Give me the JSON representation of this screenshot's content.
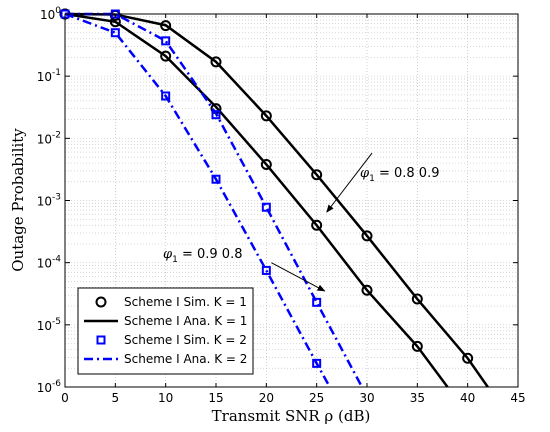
{
  "chart_data": {
    "type": "line",
    "xlabel": "Transmit SNR ρ (dB)",
    "ylabel": "Outage Probability",
    "xlim": [
      0,
      45
    ],
    "ylim": [
      1e-06,
      1
    ],
    "yscale": "log",
    "grid": true,
    "x_ticks": [
      "0",
      "5",
      "10",
      "15",
      "20",
      "25",
      "30",
      "35",
      "40",
      "45"
    ],
    "y_ticks": [
      {
        "base": "10",
        "exp": "0"
      },
      {
        "base": "10",
        "exp": "-1"
      },
      {
        "base": "10",
        "exp": "-2"
      },
      {
        "base": "10",
        "exp": "-3"
      },
      {
        "base": "10",
        "exp": "-4"
      },
      {
        "base": "10",
        "exp": "-5"
      },
      {
        "base": "10",
        "exp": "-6"
      }
    ],
    "legend": {
      "position": "bottom-left",
      "entries": [
        {
          "label": "Scheme I Sim. K = 1",
          "color": "#000000",
          "style": "marker-circle"
        },
        {
          "label": "Scheme I Ana. K = 1",
          "color": "#000000",
          "style": "solid"
        },
        {
          "label": "Scheme I Sim. K = 2",
          "color": "#0000ff",
          "style": "marker-square"
        },
        {
          "label": "Scheme I Ana. K = 2",
          "color": "#0000ff",
          "style": "dashdot"
        }
      ]
    },
    "series": [
      {
        "group": "K1",
        "kind": "sim",
        "color": "#000000",
        "marker": "circle",
        "points": [
          [
            0,
            1.0
          ],
          [
            5,
            0.95
          ],
          [
            10,
            0.65
          ],
          [
            15,
            0.17
          ],
          [
            20,
            0.023
          ],
          [
            25,
            0.0026
          ],
          [
            30,
            0.00027
          ],
          [
            35,
            2.6e-05
          ],
          [
            40,
            2.9e-06
          ]
        ]
      },
      {
        "group": "K1",
        "kind": "sim",
        "color": "#000000",
        "marker": "circle",
        "points": [
          [
            0,
            1.0
          ],
          [
            5,
            0.75
          ],
          [
            10,
            0.21
          ],
          [
            15,
            0.03
          ],
          [
            20,
            0.0038
          ],
          [
            25,
            0.0004
          ],
          [
            30,
            3.6e-05
          ],
          [
            35,
            4.5e-06
          ]
        ]
      },
      {
        "group": "K1",
        "kind": "ana",
        "color": "#000000",
        "dash": "solid",
        "points": [
          [
            0,
            1.0
          ],
          [
            5,
            0.98
          ],
          [
            10,
            0.66
          ],
          [
            15,
            0.17
          ],
          [
            20,
            0.023
          ],
          [
            25,
            0.0026
          ],
          [
            30,
            0.00027
          ],
          [
            35,
            2.6e-05
          ],
          [
            40,
            2.9e-06
          ],
          [
            42,
            1e-06
          ]
        ]
      },
      {
        "group": "K1",
        "kind": "ana",
        "color": "#000000",
        "dash": "solid",
        "points": [
          [
            0,
            1.0
          ],
          [
            5,
            0.75
          ],
          [
            10,
            0.21
          ],
          [
            15,
            0.032
          ],
          [
            20,
            0.0038
          ],
          [
            25,
            0.0004
          ],
          [
            30,
            3.6e-05
          ],
          [
            35,
            4.5e-06
          ],
          [
            38,
            1e-06
          ]
        ]
      },
      {
        "group": "K2",
        "kind": "sim",
        "color": "#0000ff",
        "marker": "square",
        "points": [
          [
            0,
            1.0
          ],
          [
            5,
            1.0
          ],
          [
            10,
            0.37
          ],
          [
            15,
            0.024
          ],
          [
            20,
            0.00078
          ],
          [
            25,
            2.3e-05
          ]
        ]
      },
      {
        "group": "K2",
        "kind": "sim",
        "color": "#0000ff",
        "marker": "square",
        "points": [
          [
            0,
            1.0
          ],
          [
            5,
            0.5
          ],
          [
            10,
            0.048
          ],
          [
            15,
            0.0022
          ],
          [
            20,
            7.5e-05
          ],
          [
            25,
            2.4e-06
          ]
        ]
      },
      {
        "group": "K2",
        "kind": "ana",
        "color": "#0000ff",
        "dash": "dashdot",
        "points": [
          [
            0,
            1.0
          ],
          [
            5,
            1.0
          ],
          [
            10,
            0.37
          ],
          [
            15,
            0.025
          ],
          [
            20,
            0.00078
          ],
          [
            25,
            2.3e-05
          ],
          [
            29.5,
            1e-06
          ]
        ]
      },
      {
        "group": "K2",
        "kind": "ana",
        "color": "#0000ff",
        "dash": "dashdot",
        "points": [
          [
            0,
            1.0
          ],
          [
            5,
            0.5
          ],
          [
            10,
            0.048
          ],
          [
            15,
            0.0022
          ],
          [
            20,
            7.5e-05
          ],
          [
            25,
            2.4e-06
          ],
          [
            26.3,
            1e-06
          ]
        ]
      }
    ],
    "annotations": [
      {
        "text": "0.8 0.9",
        "symbol": "φ",
        "subscript": "1",
        "arrow_from": [
          30.5,
          0.0058
        ],
        "arrow_to": [
          26,
          0.00065
        ]
      },
      {
        "text": "0.9 0.8",
        "symbol": "φ",
        "subscript": "1",
        "arrow_from": [
          20.5,
          0.0001
        ],
        "arrow_to": [
          25.8,
          3.5e-05
        ]
      }
    ]
  }
}
